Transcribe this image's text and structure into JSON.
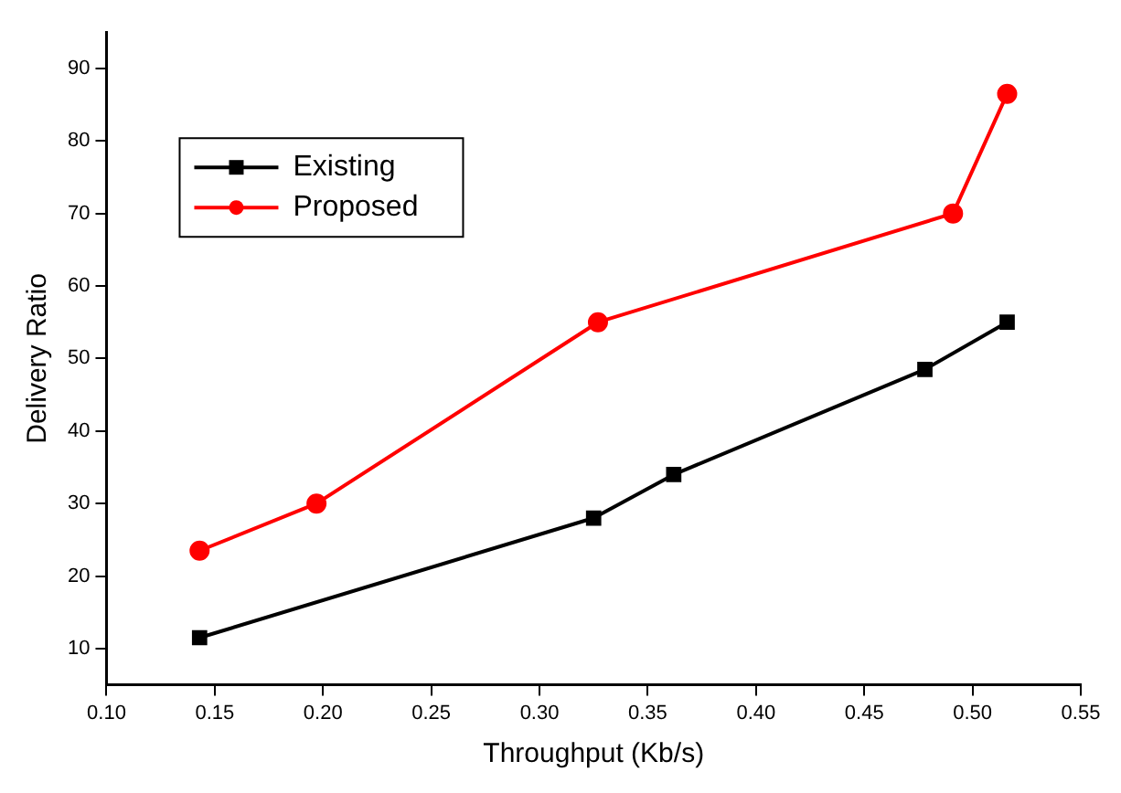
{
  "chart_data": {
    "type": "line",
    "xlabel": "Throughput (Kb/s)",
    "ylabel": "Delivery Ratio",
    "xlim": [
      0.1,
      0.55
    ],
    "xticks": [
      {
        "value": 0.1,
        "label": "0.10"
      },
      {
        "value": 0.15,
        "label": "0.15"
      },
      {
        "value": 0.2,
        "label": "0.20"
      },
      {
        "value": 0.25,
        "label": "0.25"
      },
      {
        "value": 0.3,
        "label": "0.30"
      },
      {
        "value": 0.35,
        "label": "0.35"
      },
      {
        "value": 0.4,
        "label": "0.40"
      },
      {
        "value": 0.45,
        "label": "0.45"
      },
      {
        "value": 0.5,
        "label": "0.50"
      },
      {
        "value": 0.55,
        "label": "0.55"
      }
    ],
    "ylim": [
      5,
      95
    ],
    "yticks": [
      10,
      20,
      30,
      40,
      50,
      60,
      70,
      80,
      90
    ],
    "grid": false,
    "legend": "top left",
    "line_style": "solid",
    "series": [
      {
        "name": "Existing",
        "color": "#000000",
        "marker": "square",
        "x": [
          0.143,
          0.325,
          0.362,
          0.478,
          0.516
        ],
        "values": [
          11.5,
          28,
          34,
          48.5,
          55
        ]
      },
      {
        "name": "Proposed",
        "color": "#ff0000",
        "marker": "circle",
        "x": [
          0.143,
          0.197,
          0.327,
          0.491,
          0.516
        ],
        "values": [
          23.5,
          30,
          55,
          70,
          86.5
        ]
      }
    ]
  }
}
